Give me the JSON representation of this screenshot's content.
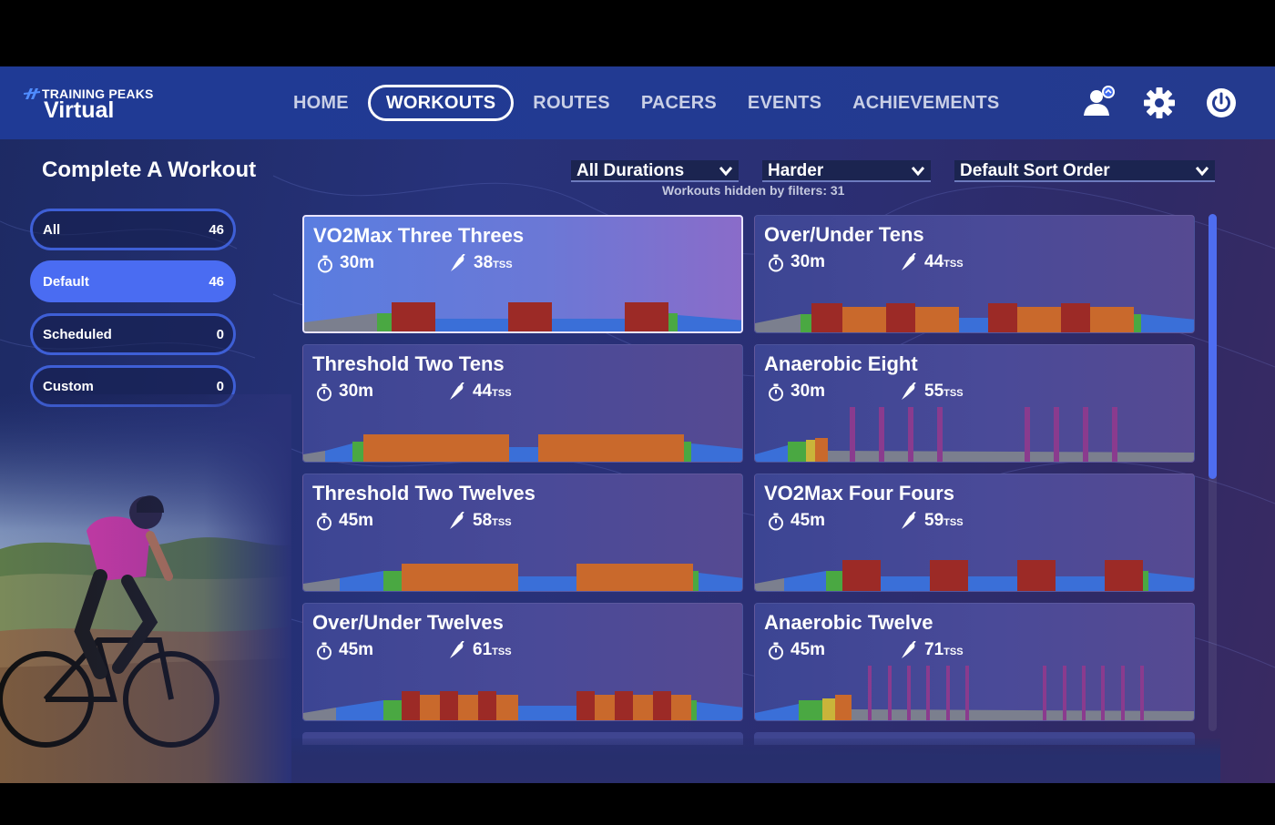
{
  "brand": {
    "line1": "TRAINING PEAKS",
    "line2": "Virtual"
  },
  "nav": {
    "items": [
      {
        "label": "HOME",
        "active": false
      },
      {
        "label": "WORKOUTS",
        "active": true
      },
      {
        "label": "ROUTES",
        "active": false
      },
      {
        "label": "PACERS",
        "active": false
      },
      {
        "label": "EVENTS",
        "active": false
      },
      {
        "label": "ACHIEVEMENTS",
        "active": false
      }
    ],
    "icons": [
      "profile-icon",
      "gear-icon",
      "power-icon"
    ]
  },
  "page": {
    "title": "Complete A Workout"
  },
  "categories": [
    {
      "label": "All",
      "count": "46",
      "active": false
    },
    {
      "label": "Default",
      "count": "46",
      "active": true
    },
    {
      "label": "Scheduled",
      "count": "0",
      "active": false
    },
    {
      "label": "Custom",
      "count": "0",
      "active": false
    }
  ],
  "filters": {
    "duration": "All Durations",
    "difficulty": "Harder",
    "sort": "Default Sort Order",
    "hidden_text": "Workouts hidden by filters: 31"
  },
  "tss_unit": "TSS",
  "colors": {
    "accent": "#4a6cf2",
    "zone_warmup": "#7b7f8e",
    "zone_endurance": "#3a6fd8",
    "zone_tempo": "#4aa842",
    "zone_sweetspot": "#c9b43a",
    "zone_threshold": "#c9692c",
    "zone_vo2": "#9c2a26",
    "zone_anaerobic": "#8a3b8e"
  },
  "workouts": [
    {
      "title": "VO2Max Three Threes",
      "duration": "30m",
      "tss": "38",
      "selected": true,
      "profile": "vo2-3x3"
    },
    {
      "title": "Over/Under Tens",
      "duration": "30m",
      "tss": "44",
      "selected": false,
      "profile": "ou-tens"
    },
    {
      "title": "Threshold Two Tens",
      "duration": "30m",
      "tss": "44",
      "selected": false,
      "profile": "thr-2x10"
    },
    {
      "title": "Anaerobic Eight",
      "duration": "30m",
      "tss": "55",
      "selected": false,
      "profile": "anaer-8"
    },
    {
      "title": "Threshold Two Twelves",
      "duration": "45m",
      "tss": "58",
      "selected": false,
      "profile": "thr-2x12"
    },
    {
      "title": "VO2Max Four Fours",
      "duration": "45m",
      "tss": "59",
      "selected": false,
      "profile": "vo2-4x4"
    },
    {
      "title": "Over/Under Twelves",
      "duration": "45m",
      "tss": "61",
      "selected": false,
      "profile": "ou-twelves"
    },
    {
      "title": "Anaerobic Twelve",
      "duration": "45m",
      "tss": "71",
      "selected": false,
      "profile": "anaer-12"
    }
  ]
}
